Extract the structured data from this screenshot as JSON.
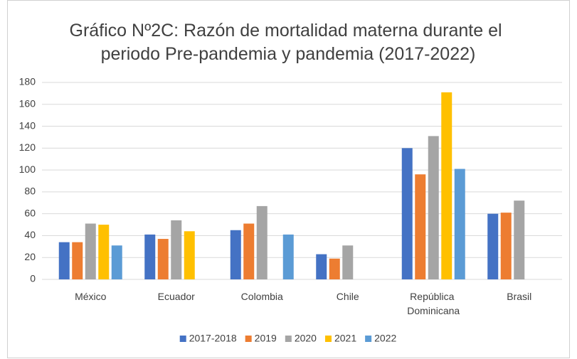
{
  "chart_data": {
    "type": "bar",
    "title": "Gráfico Nº2C: Razón de mortalidad materna durante el periodo Pre-pandemia y pandemia (2017-2022)",
    "categories": [
      "México",
      "Ecuador",
      "Colombia",
      "Chile",
      "República Dominicana",
      "Brasil"
    ],
    "series": [
      {
        "name": "2017-2018",
        "color": "#4472c4",
        "values": [
          34,
          41,
          45,
          23,
          120,
          60
        ]
      },
      {
        "name": "2019",
        "color": "#ed7d31",
        "values": [
          34,
          37,
          51,
          19,
          96,
          61
        ]
      },
      {
        "name": "2020",
        "color": "#a5a5a5",
        "values": [
          51,
          54,
          67,
          31,
          131,
          72
        ]
      },
      {
        "name": "2021",
        "color": "#ffc000",
        "values": [
          50,
          44,
          null,
          null,
          171,
          null
        ]
      },
      {
        "name": "2022",
        "color": "#5b9bd5",
        "values": [
          31,
          null,
          41,
          null,
          101,
          null
        ]
      }
    ],
    "ylim": [
      0,
      180
    ],
    "yticks": [
      0,
      20,
      40,
      60,
      80,
      100,
      120,
      140,
      160,
      180
    ],
    "grid": true,
    "legend": "bottom"
  }
}
